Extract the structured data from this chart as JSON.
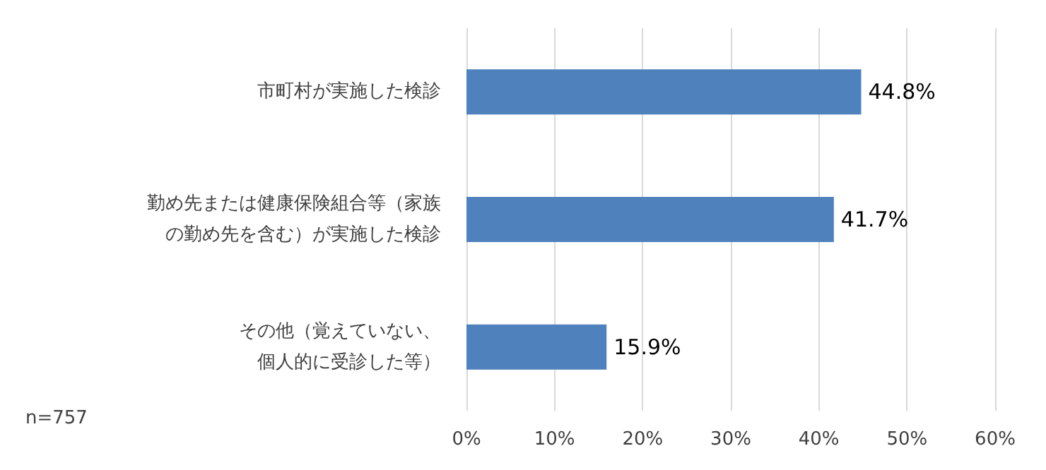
{
  "chart_data": {
    "type": "bar",
    "orientation": "horizontal",
    "categories": [
      "市町村が実施した検診",
      "勤め先または健康保険組合等（家族の勤め先を含む）が実施した検診",
      "その他（覚えていない、個人的に受診した等）"
    ],
    "values": [
      44.8,
      41.7,
      15.9
    ],
    "value_labels": [
      "44.8%",
      "41.7%",
      "15.9%"
    ],
    "color": "#4f81bd",
    "xlim": [
      0,
      60
    ],
    "xticks": [
      {
        "value": 0,
        "label": "0%"
      },
      {
        "value": 10,
        "label": "10%"
      },
      {
        "value": 20,
        "label": "20%"
      },
      {
        "value": 30,
        "label": "30%"
      },
      {
        "value": 40,
        "label": "40%"
      },
      {
        "value": 50,
        "label": "50%"
      },
      {
        "value": 60,
        "label": "60%"
      }
    ],
    "grid": "x",
    "annotations": [
      "n=757"
    ]
  }
}
